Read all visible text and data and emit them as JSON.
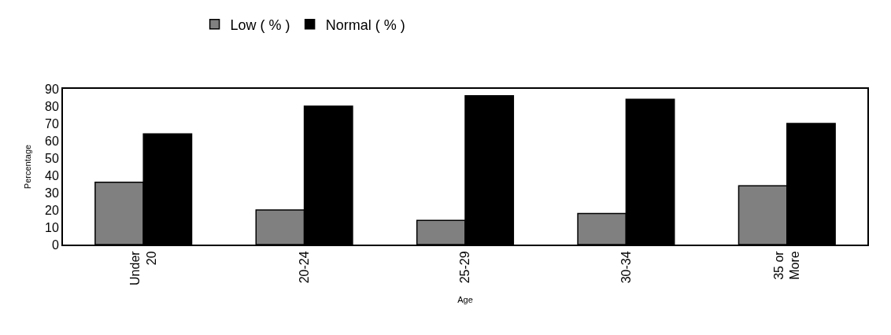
{
  "chart_data": {
    "type": "bar",
    "xlabel": "Age",
    "ylabel": "Percentage",
    "categories": [
      "Under 20",
      "20-24",
      "25-29",
      "30-34",
      "35 or More"
    ],
    "series": [
      {
        "name": "Low ( % )",
        "color": "#808080",
        "values": [
          36,
          20,
          14,
          18,
          34
        ]
      },
      {
        "name": "Normal ( % )",
        "color": "#000000",
        "values": [
          64,
          80,
          86,
          84,
          70
        ]
      }
    ],
    "ylim": [
      0,
      90
    ],
    "yticks": [
      0,
      10,
      20,
      30,
      40,
      50,
      60,
      70,
      80,
      90
    ],
    "grid": false,
    "legend": "top"
  }
}
